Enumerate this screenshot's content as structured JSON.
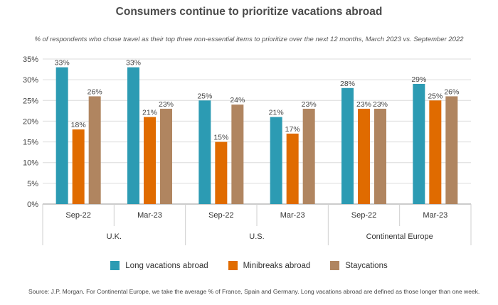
{
  "title": "Consumers continue to prioritize vacations abroad",
  "subtitle": "% of respondents who chose travel as their top three non-essential items to prioritize over the next 12 months, March 2023 vs. September 2022",
  "source": "Source: J.P. Morgan. For Continental Europe, we take the average % of France, Spain and Germany. Long vacations abroad are defined as those longer than one week.",
  "colors": {
    "long": "#2c9bb3",
    "mini": "#e06b00",
    "stay": "#b08560"
  },
  "chart_data": {
    "type": "bar",
    "title": "Consumers continue to prioritize vacations abroad",
    "ylim": [
      0,
      35
    ],
    "y_ticks": [
      "0%",
      "5%",
      "10%",
      "15%",
      "20%",
      "25%",
      "30%",
      "35%"
    ],
    "groups": [
      "U.K.",
      "U.S.",
      "Continental Europe"
    ],
    "categories": [
      "Sep-22",
      "Mar-23",
      "Sep-22",
      "Mar-23",
      "Sep-22",
      "Mar-23"
    ],
    "series": [
      {
        "name": "Long vacations abroad",
        "values": [
          33,
          33,
          25,
          21,
          28,
          29
        ],
        "labels": [
          "33%",
          "33%",
          "25%",
          "21%",
          "28%",
          "29%"
        ]
      },
      {
        "name": "Minibreaks abroad",
        "values": [
          18,
          21,
          15,
          17,
          23,
          25
        ],
        "labels": [
          "18%",
          "21%",
          "15%",
          "17%",
          "23%",
          "25%"
        ]
      },
      {
        "name": "Staycations",
        "values": [
          26,
          23,
          24,
          23,
          23,
          26
        ],
        "labels": [
          "26%",
          "23%",
          "24%",
          "23%",
          "23%",
          "26%"
        ]
      }
    ],
    "grid": true,
    "legend": "bottom"
  }
}
